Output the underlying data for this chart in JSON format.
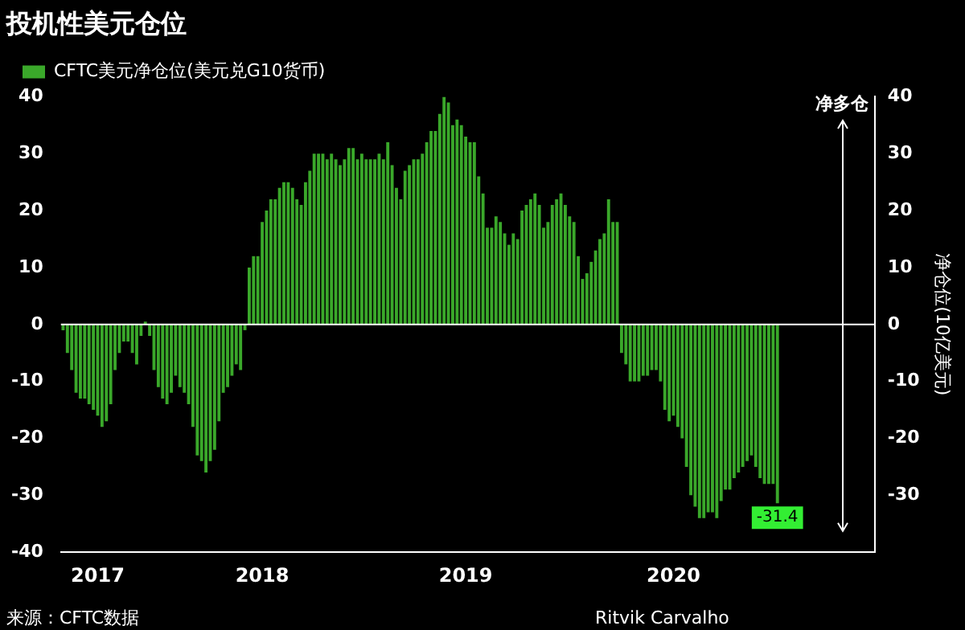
{
  "chart_data": {
    "type": "bar",
    "title": "投机性美元仓位",
    "y2label": "净仓位(10亿美元)",
    "annotations": [
      "净多仓",
      "来源：CFTC数据",
      "Ritvik Carvalho"
    ],
    "legend": "top left",
    "series": [
      {
        "name": "CFTC美元净仓位(美元兑G10货币)",
        "color": "#3aa82a",
        "values": [
          -1,
          -5,
          -8,
          -12,
          -13,
          -13,
          -14,
          -15,
          -16,
          -18,
          -17,
          -14,
          -8,
          -5,
          -3,
          -3,
          -5,
          -7,
          -2,
          0.5,
          -2,
          -8,
          -11,
          -13,
          -14,
          -12,
          -9,
          -11,
          -12,
          -14,
          -18,
          -23,
          -24,
          -26,
          -24,
          -22,
          -17,
          -12,
          -11,
          -9,
          -7,
          -8,
          -1,
          10,
          12,
          12,
          18,
          20,
          22,
          22,
          24,
          25,
          25,
          24,
          22,
          21,
          25,
          27,
          30,
          30,
          30,
          29,
          30,
          29,
          28,
          29,
          31,
          31,
          29,
          30,
          29,
          29,
          29,
          30,
          29,
          32,
          28,
          24,
          22,
          27,
          28,
          29,
          29,
          30,
          32,
          34,
          34,
          37,
          40,
          39,
          35,
          36,
          35,
          33,
          32,
          32,
          26,
          23,
          17,
          17,
          19,
          18,
          16,
          14,
          16,
          15,
          20,
          21,
          22,
          23,
          21,
          17,
          18,
          21,
          22,
          23,
          21,
          19,
          18,
          12,
          8,
          9,
          11,
          13,
          15,
          16,
          22,
          18,
          18,
          -5,
          -7,
          -10,
          -10,
          -10,
          -9,
          -9,
          -8,
          -8,
          -10,
          -15,
          -17,
          -16,
          -18,
          -20,
          -25,
          -30,
          -32,
          -34,
          -34,
          -33,
          -33,
          -34,
          -31,
          -29,
          -29,
          -27,
          -26,
          -25,
          -24,
          -23,
          -25,
          -27,
          -28,
          -28,
          -28,
          -31.4,
          null,
          null,
          null,
          null,
          null,
          null,
          null,
          null,
          null,
          null,
          null,
          null,
          null,
          null,
          null,
          null,
          null,
          null,
          null,
          null,
          null,
          null
        ],
        "value_labels": [
          null,
          null,
          null,
          null,
          null,
          null,
          null,
          null,
          null,
          null,
          null,
          null,
          null,
          null,
          null,
          null,
          null,
          null,
          null,
          null,
          null,
          null,
          null,
          null,
          null,
          null,
          null,
          null,
          null,
          null,
          null,
          null,
          null,
          null,
          null,
          null,
          null,
          null,
          null,
          null,
          null,
          null,
          null,
          null,
          null,
          null,
          null,
          null,
          null,
          null,
          null,
          null,
          null,
          null,
          null,
          null,
          null,
          null,
          null,
          null,
          null,
          null,
          null,
          null,
          null,
          null,
          null,
          null,
          null,
          null,
          null,
          null,
          null,
          null,
          null,
          null,
          null,
          null,
          null,
          null,
          null,
          null,
          null,
          null,
          null,
          null,
          null,
          null,
          null,
          null,
          null,
          null,
          null,
          null,
          null,
          null,
          null,
          null,
          null,
          null,
          null,
          null,
          null,
          null,
          null,
          null,
          null,
          null,
          null,
          null,
          null,
          null,
          null,
          null,
          null,
          null,
          null,
          null,
          null,
          null,
          null,
          null,
          null,
          null,
          null,
          null,
          null,
          null,
          null,
          null,
          null,
          null,
          null,
          null,
          null,
          null,
          null,
          null,
          null,
          null,
          null,
          null,
          null,
          null,
          null,
          null,
          null,
          null,
          null,
          null,
          null,
          null,
          null,
          null,
          null,
          null,
          null,
          null,
          null,
          null,
          null,
          null,
          null,
          null,
          null,
          "-31.4",
          null,
          null,
          null,
          null,
          null,
          null,
          null,
          null,
          null,
          null,
          null,
          null,
          null,
          null,
          null,
          null,
          null,
          null,
          null,
          null,
          null,
          null
        ]
      }
    ],
    "categories": [
      null,
      null,
      null,
      null,
      null,
      null,
      null,
      null,
      "2017",
      null,
      null,
      null,
      null,
      null,
      null,
      null,
      null,
      null,
      null,
      null,
      null,
      null,
      null,
      null,
      null,
      null,
      null,
      null,
      null,
      null,
      null,
      null,
      null,
      null,
      null,
      null,
      null,
      null,
      null,
      null,
      null,
      null,
      null,
      null,
      null,
      null,
      "2018",
      null,
      null,
      null,
      null,
      null,
      null,
      null,
      null,
      null,
      null,
      null,
      null,
      null,
      null,
      null,
      null,
      null,
      null,
      null,
      null,
      null,
      null,
      null,
      null,
      null,
      null,
      null,
      null,
      null,
      null,
      null,
      null,
      null,
      null,
      null,
      null,
      null,
      null,
      null,
      null,
      null,
      null,
      null,
      null,
      null,
      null,
      "2019",
      null,
      null,
      null,
      null,
      null,
      null,
      null,
      null,
      null,
      null,
      null,
      null,
      null,
      null,
      null,
      null,
      null,
      null,
      null,
      null,
      null,
      null,
      null,
      null,
      null,
      null,
      null,
      null,
      null,
      null,
      null,
      null,
      null,
      null,
      null,
      null,
      null,
      null,
      null,
      null,
      null,
      null,
      null,
      null,
      null,
      null,
      null,
      "2020",
      null,
      null,
      null,
      null,
      null,
      null,
      null,
      null,
      null,
      null,
      null,
      null,
      null,
      null,
      null,
      null,
      null,
      null,
      null,
      null,
      null,
      null,
      null,
      null,
      null,
      null,
      null,
      null,
      null,
      null,
      null,
      null,
      null,
      null,
      null,
      null,
      null,
      null,
      null,
      null,
      null,
      null,
      null,
      null,
      null,
      null
    ],
    "ylim": [
      -40,
      40
    ],
    "yticks": [
      -40,
      -30,
      -20,
      -10,
      0,
      10,
      20,
      30,
      40
    ],
    "y2lim": [
      -40,
      40
    ],
    "y2ticks": [
      -30,
      -20,
      -10,
      0,
      10,
      20,
      30,
      40
    ]
  }
}
